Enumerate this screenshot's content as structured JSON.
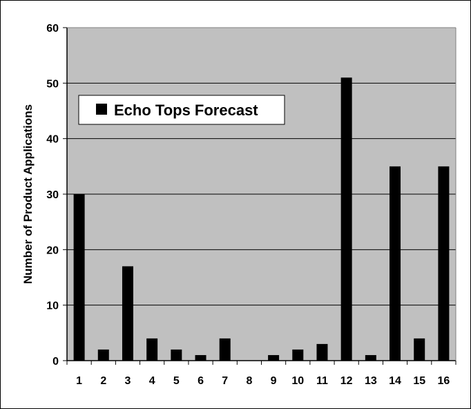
{
  "chart_data": {
    "type": "bar",
    "categories": [
      "1",
      "2",
      "3",
      "4",
      "5",
      "6",
      "7",
      "8",
      "9",
      "10",
      "11",
      "12",
      "13",
      "14",
      "15",
      "16"
    ],
    "series": [
      {
        "name": "Echo Tops Forecast",
        "values": [
          30,
          2,
          17,
          4,
          2,
          1,
          4,
          0,
          1,
          2,
          3,
          51,
          1,
          35,
          4,
          35
        ]
      }
    ],
    "title": "",
    "xlabel": "",
    "ylabel": "Number of Product Applications",
    "ylim": [
      0,
      60
    ],
    "yticks": [
      0,
      10,
      20,
      30,
      40,
      50,
      60
    ],
    "grid": true,
    "legend_position": "top-left",
    "colors": {
      "plot_background": "#c0c0c0",
      "bar": "#000000",
      "gridline": "#000000"
    }
  }
}
